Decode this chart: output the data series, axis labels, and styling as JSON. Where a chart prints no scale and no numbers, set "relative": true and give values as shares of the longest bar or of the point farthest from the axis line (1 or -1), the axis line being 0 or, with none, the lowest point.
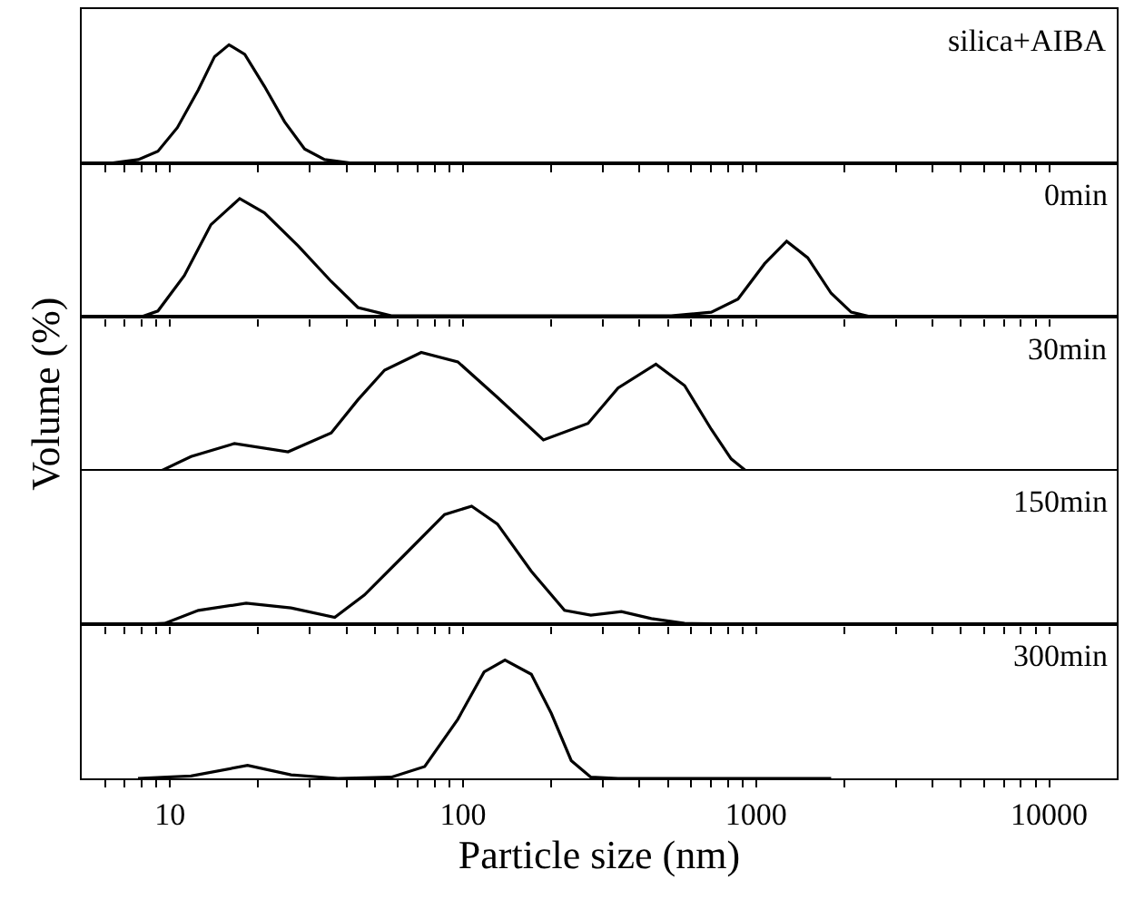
{
  "chart_data": [
    {
      "type": "line",
      "relative": true,
      "annotations": [
        "silica+AIBA"
      ],
      "tick_labels": false,
      "grid": false,
      "xlim": [
        5,
        17000
      ],
      "log": "x",
      "xticks": [
        {
          "value": 6,
          "label": null
        },
        {
          "value": 7,
          "label": null
        },
        {
          "value": 8,
          "label": null
        },
        {
          "value": 9,
          "label": null
        },
        10,
        {
          "value": 20,
          "label": null
        },
        {
          "value": 30,
          "label": null
        },
        {
          "value": 40,
          "label": null
        },
        {
          "value": 50,
          "label": null
        },
        {
          "value": 60,
          "label": null
        },
        {
          "value": 70,
          "label": null
        },
        {
          "value": 80,
          "label": null
        },
        {
          "value": 90,
          "label": null
        },
        100,
        {
          "value": 200,
          "label": null
        },
        {
          "value": 300,
          "label": null
        },
        {
          "value": 400,
          "label": null
        },
        {
          "value": 500,
          "label": null
        },
        {
          "value": 600,
          "label": null
        },
        {
          "value": 700,
          "label": null
        },
        {
          "value": 800,
          "label": null
        },
        {
          "value": 900,
          "label": null
        },
        1000,
        {
          "value": 2000,
          "label": null
        },
        {
          "value": 3000,
          "label": null
        },
        {
          "value": 4000,
          "label": null
        },
        {
          "value": 5000,
          "label": null
        },
        {
          "value": 6000,
          "label": null
        },
        {
          "value": 7000,
          "label": null
        },
        {
          "value": 8000,
          "label": null
        },
        {
          "value": 9000,
          "label": null
        },
        10000
      ],
      "series": [
        {
          "color": "#000000",
          "x": [
            6.3,
            7.8,
            9.1,
            10.6,
            12.5,
            14.2,
            15.9,
            18.0,
            21.0,
            24.6,
            28.8,
            33.7,
            41.6,
            870
          ],
          "values": [
            0,
            0.03,
            0.1,
            0.3,
            0.62,
            0.9,
            1,
            0.92,
            0.65,
            0.35,
            0.12,
            0.03,
            0,
            0
          ]
        }
      ]
    },
    {
      "type": "line",
      "relative": true,
      "annotations": [
        "0min"
      ],
      "tick_labels": false,
      "grid": false,
      "xlim": [
        5,
        17000
      ],
      "log": "x",
      "xticks": [
        {
          "value": 6,
          "label": null
        },
        {
          "value": 7,
          "label": null
        },
        {
          "value": 8,
          "label": null
        },
        {
          "value": 9,
          "label": null
        },
        10,
        {
          "value": 20,
          "label": null
        },
        {
          "value": 30,
          "label": null
        },
        {
          "value": 40,
          "label": null
        },
        {
          "value": 50,
          "label": null
        },
        {
          "value": 60,
          "label": null
        },
        {
          "value": 70,
          "label": null
        },
        {
          "value": 80,
          "label": null
        },
        {
          "value": 90,
          "label": null
        },
        100,
        {
          "value": 200,
          "label": null
        },
        {
          "value": 300,
          "label": null
        },
        {
          "value": 400,
          "label": null
        },
        {
          "value": 500,
          "label": null
        },
        {
          "value": 600,
          "label": null
        },
        {
          "value": 700,
          "label": null
        },
        {
          "value": 800,
          "label": null
        },
        {
          "value": 900,
          "label": null
        },
        1000,
        {
          "value": 2000,
          "label": null
        },
        {
          "value": 3000,
          "label": null
        },
        {
          "value": 4000,
          "label": null
        },
        {
          "value": 5000,
          "label": null
        },
        {
          "value": 6000,
          "label": null
        },
        {
          "value": 7000,
          "label": null
        },
        {
          "value": 8000,
          "label": null
        },
        {
          "value": 9000,
          "label": null
        },
        10000
      ],
      "series": [
        {
          "color": "#000000",
          "x": [
            7.98,
            9.1,
            11.2,
            13.8,
            17.3,
            21.0,
            27.4,
            35.5,
            43.8,
            56.9,
            513,
            703,
            867,
            1069,
            1271,
            1500,
            1803,
            2110,
            2470
          ],
          "values": [
            0,
            0.05,
            0.35,
            0.78,
            1,
            0.88,
            0.6,
            0.3,
            0.08,
            0.01,
            0.01,
            0.04,
            0.15,
            0.45,
            0.64,
            0.5,
            0.2,
            0.04,
            0
          ]
        }
      ]
    },
    {
      "type": "line",
      "relative": true,
      "annotations": [
        "30min"
      ],
      "ylabel": "Volume (%)",
      "tick_labels": false,
      "grid": false,
      "xlim": [
        5,
        17000
      ],
      "log": "x",
      "xticks": [
        {
          "value": 6,
          "label": null
        },
        {
          "value": 7,
          "label": null
        },
        {
          "value": 8,
          "label": null
        },
        {
          "value": 9,
          "label": null
        },
        10,
        {
          "value": 20,
          "label": null
        },
        {
          "value": 30,
          "label": null
        },
        {
          "value": 40,
          "label": null
        },
        {
          "value": 50,
          "label": null
        },
        {
          "value": 60,
          "label": null
        },
        {
          "value": 70,
          "label": null
        },
        {
          "value": 80,
          "label": null
        },
        {
          "value": 90,
          "label": null
        },
        100,
        {
          "value": 200,
          "label": null
        },
        {
          "value": 300,
          "label": null
        },
        {
          "value": 400,
          "label": null
        },
        {
          "value": 500,
          "label": null
        },
        {
          "value": 600,
          "label": null
        },
        {
          "value": 700,
          "label": null
        },
        {
          "value": 800,
          "label": null
        },
        {
          "value": 900,
          "label": null
        },
        1000,
        {
          "value": 2000,
          "label": null
        },
        {
          "value": 3000,
          "label": null
        },
        {
          "value": 4000,
          "label": null
        },
        {
          "value": 5000,
          "label": null
        },
        {
          "value": 6000,
          "label": null
        },
        {
          "value": 7000,
          "label": null
        },
        {
          "value": 8000,
          "label": null
        },
        {
          "value": 9000,
          "label": null
        },
        10000
      ],
      "series": [
        {
          "color": "#000000",
          "x": [
            9.34,
            11.8,
            16.6,
            25.3,
            35.5,
            43.8,
            54.0,
            72.0,
            96.0,
            131,
            188,
            267,
            338,
            455,
            570,
            703,
            822,
            923
          ],
          "values": [
            0,
            0.12,
            0.23,
            0.16,
            0.32,
            0.6,
            0.85,
            1,
            0.92,
            0.62,
            0.26,
            0.4,
            0.7,
            0.9,
            0.72,
            0.35,
            0.1,
            0
          ]
        }
      ]
    },
    {
      "type": "line",
      "relative": true,
      "annotations": [
        "150min"
      ],
      "tick_labels": false,
      "grid": false,
      "xlim": [
        5,
        17000
      ],
      "log": "x",
      "xticks": [
        {
          "value": 6,
          "label": null
        },
        {
          "value": 7,
          "label": null
        },
        {
          "value": 8,
          "label": null
        },
        {
          "value": 9,
          "label": null
        },
        10,
        {
          "value": 20,
          "label": null
        },
        {
          "value": 30,
          "label": null
        },
        {
          "value": 40,
          "label": null
        },
        {
          "value": 50,
          "label": null
        },
        {
          "value": 60,
          "label": null
        },
        {
          "value": 70,
          "label": null
        },
        {
          "value": 80,
          "label": null
        },
        {
          "value": 90,
          "label": null
        },
        100,
        {
          "value": 200,
          "label": null
        },
        {
          "value": 300,
          "label": null
        },
        {
          "value": 400,
          "label": null
        },
        {
          "value": 500,
          "label": null
        },
        {
          "value": 600,
          "label": null
        },
        {
          "value": 700,
          "label": null
        },
        {
          "value": 800,
          "label": null
        },
        {
          "value": 900,
          "label": null
        },
        1000,
        {
          "value": 2000,
          "label": null
        },
        {
          "value": 3000,
          "label": null
        },
        {
          "value": 4000,
          "label": null
        },
        {
          "value": 5000,
          "label": null
        },
        {
          "value": 6000,
          "label": null
        },
        {
          "value": 7000,
          "label": null
        },
        {
          "value": 8000,
          "label": null
        },
        {
          "value": 9000,
          "label": null
        },
        10000
      ],
      "series": [
        {
          "color": "#000000",
          "x": [
            7.78,
            9.59,
            12.5,
            18.2,
            25.9,
            36.5,
            46.1,
            63.2,
            86.5,
            107,
            131,
            171,
            222,
            273,
            347,
            439,
            570,
            1125
          ],
          "values": [
            0,
            0.01,
            0.12,
            0.18,
            0.14,
            0.06,
            0.25,
            0.59,
            0.93,
            1,
            0.85,
            0.45,
            0.12,
            0.08,
            0.11,
            0.05,
            0.01,
            0
          ]
        }
      ]
    },
    {
      "type": "line",
      "relative": true,
      "annotations": [
        "300min"
      ],
      "xlabel": "Particle size (nm)",
      "tick_labels": "x",
      "grid": false,
      "xlim": [
        5,
        17000
      ],
      "log": "x",
      "xticks": [
        {
          "value": 6,
          "label": null
        },
        {
          "value": 7,
          "label": null
        },
        {
          "value": 8,
          "label": null
        },
        {
          "value": 9,
          "label": null
        },
        10,
        {
          "value": 20,
          "label": null
        },
        {
          "value": 30,
          "label": null
        },
        {
          "value": 40,
          "label": null
        },
        {
          "value": 50,
          "label": null
        },
        {
          "value": 60,
          "label": null
        },
        {
          "value": 70,
          "label": null
        },
        {
          "value": 80,
          "label": null
        },
        {
          "value": 90,
          "label": null
        },
        100,
        {
          "value": 200,
          "label": null
        },
        {
          "value": 300,
          "label": null
        },
        {
          "value": 400,
          "label": null
        },
        {
          "value": 500,
          "label": null
        },
        {
          "value": 600,
          "label": null
        },
        {
          "value": 700,
          "label": null
        },
        {
          "value": 800,
          "label": null
        },
        {
          "value": 900,
          "label": null
        },
        1000,
        {
          "value": 2000,
          "label": null
        },
        {
          "value": 3000,
          "label": null
        },
        {
          "value": 4000,
          "label": null
        },
        {
          "value": 5000,
          "label": null
        },
        {
          "value": 6000,
          "label": null
        },
        {
          "value": 7000,
          "label": null
        },
        {
          "value": 8000,
          "label": null
        },
        {
          "value": 9000,
          "label": null
        },
        10000
      ],
      "series": [
        {
          "color": "#000000",
          "x": [
            7.78,
            11.8,
            18.4,
            25.9,
            37.4,
            56.9,
            74.0,
            96.0,
            118,
            139,
            171,
            200,
            234,
            273,
            338,
            1803
          ],
          "values": [
            0,
            0.02,
            0.11,
            0.03,
            0,
            0.01,
            0.1,
            0.5,
            0.9,
            1,
            0.88,
            0.55,
            0.15,
            0.01,
            0,
            0
          ]
        }
      ]
    }
  ]
}
